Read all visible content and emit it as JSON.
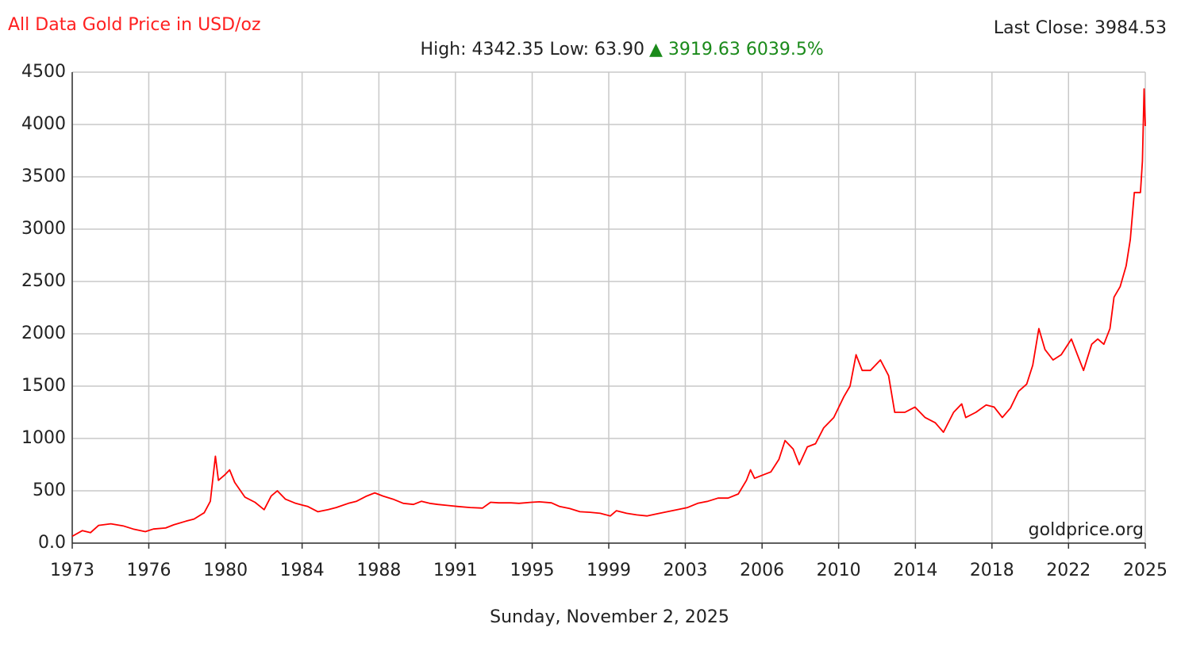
{
  "chart_data": {
    "type": "line",
    "title": "All Data Gold Price in USD/oz",
    "subtitle": "High: 4342.35 Low: 63.90",
    "change": "▲ 3919.63 6039.5%",
    "last_close": "Last Close: 3984.53",
    "watermark": "goldprice.org",
    "date": "Sunday, November 2, 2025",
    "grid": true,
    "series": [
      {
        "name": "Gold",
        "color": "#ff0000",
        "x": [
          1973.0,
          1973.5,
          1973.9,
          1974.3,
          1974.9,
          1975.5,
          1976.0,
          1976.6,
          1977.0,
          1977.6,
          1978.0,
          1978.6,
          1979.0,
          1979.5,
          1979.8,
          1980.05,
          1980.2,
          1980.5,
          1980.75,
          1981.0,
          1981.5,
          1982.0,
          1982.45,
          1982.8,
          1983.1,
          1983.5,
          1984.0,
          1984.6,
          1985.1,
          1985.6,
          1986.0,
          1986.6,
          1987.0,
          1987.5,
          1987.9,
          1988.3,
          1988.8,
          1989.3,
          1989.8,
          1990.2,
          1990.6,
          1991.0,
          1991.5,
          1992.0,
          1992.6,
          1993.2,
          1993.6,
          1994.0,
          1994.6,
          1995.0,
          1995.6,
          1996.0,
          1996.6,
          1997.0,
          1997.5,
          1998.0,
          1998.5,
          1999.0,
          1999.5,
          1999.8,
          2000.3,
          2000.8,
          2001.3,
          2001.8,
          2002.3,
          2002.8,
          2003.3,
          2003.8,
          2004.3,
          2004.8,
          2005.3,
          2005.8,
          2006.2,
          2006.4,
          2006.6,
          2007.0,
          2007.4,
          2007.8,
          2008.1,
          2008.5,
          2008.8,
          2009.2,
          2009.6,
          2010.0,
          2010.5,
          2011.0,
          2011.3,
          2011.6,
          2011.9,
          2012.3,
          2012.8,
          2013.2,
          2013.5,
          2014.0,
          2014.5,
          2015.0,
          2015.5,
          2015.9,
          2016.4,
          2016.8,
          2017.0,
          2017.5,
          2018.0,
          2018.4,
          2018.8,
          2019.2,
          2019.6,
          2020.0,
          2020.3,
          2020.6,
          2020.9,
          2021.3,
          2021.7,
          2022.2,
          2022.5,
          2022.8,
          2023.2,
          2023.5,
          2023.8,
          2024.1,
          2024.3,
          2024.6,
          2024.9,
          2025.1,
          2025.3,
          2025.6,
          2025.7,
          2025.78,
          2025.84
        ],
        "values": [
          65,
          120,
          100,
          170,
          185,
          165,
          135,
          110,
          135,
          145,
          175,
          210,
          230,
          290,
          400,
          830,
          600,
          650,
          700,
          580,
          440,
          390,
          320,
          450,
          500,
          420,
          380,
          350,
          300,
          320,
          340,
          380,
          400,
          450,
          480,
          450,
          420,
          380,
          370,
          400,
          380,
          370,
          360,
          350,
          340,
          335,
          390,
          385,
          385,
          380,
          390,
          395,
          385,
          350,
          330,
          300,
          295,
          285,
          260,
          310,
          285,
          270,
          260,
          280,
          300,
          320,
          340,
          380,
          400,
          430,
          430,
          470,
          600,
          700,
          620,
          650,
          680,
          800,
          980,
          900,
          750,
          920,
          950,
          1100,
          1200,
          1400,
          1500,
          1800,
          1650,
          1650,
          1750,
          1600,
          1250,
          1250,
          1300,
          1200,
          1150,
          1060,
          1250,
          1330,
          1200,
          1250,
          1320,
          1300,
          1200,
          1290,
          1450,
          1520,
          1700,
          2050,
          1850,
          1750,
          1800,
          1950,
          1800,
          1650,
          1900,
          1950,
          1900,
          2050,
          2350,
          2450,
          2650,
          2900,
          3350,
          3350,
          3650,
          4340,
          3984.53
        ]
      }
    ],
    "xlim": [
      1973.0,
      2025.84
    ],
    "xticks": [
      {
        "value": 1973.0,
        "label": "1973"
      },
      {
        "value": 1976.77,
        "label": "1976"
      },
      {
        "value": 1980.55,
        "label": "1980"
      },
      {
        "value": 1984.32,
        "label": "1984"
      },
      {
        "value": 1988.1,
        "label": "1988"
      },
      {
        "value": 1991.87,
        "label": "1991"
      },
      {
        "value": 1995.65,
        "label": "1995"
      },
      {
        "value": 1999.42,
        "label": "1999"
      },
      {
        "value": 2003.19,
        "label": "2003"
      },
      {
        "value": 2006.97,
        "label": "2006"
      },
      {
        "value": 2010.74,
        "label": "2010"
      },
      {
        "value": 2014.52,
        "label": "2014"
      },
      {
        "value": 2018.29,
        "label": "2018"
      },
      {
        "value": 2022.06,
        "label": "2022"
      },
      {
        "value": 2025.84,
        "label": "2025"
      }
    ],
    "ylim": [
      0,
      4500
    ],
    "yticks": [
      {
        "value": 0,
        "label": "0.0"
      },
      500,
      1000,
      1500,
      2000,
      2500,
      3000,
      3500,
      4000,
      4500
    ]
  }
}
